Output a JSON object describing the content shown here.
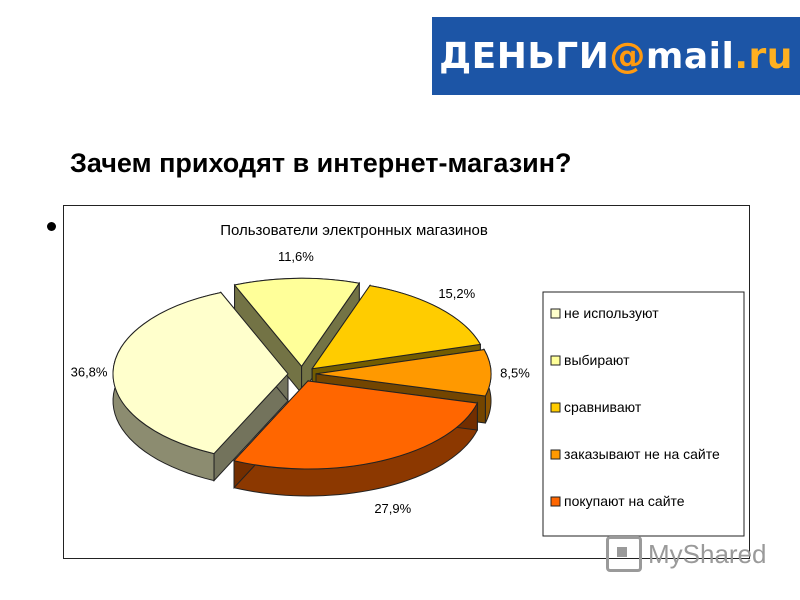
{
  "logo": {
    "part1": "ДЕНЬГИ",
    "part2": "@",
    "part3": "mail",
    "part4": ".ru"
  },
  "slide": {
    "title": "Зачем приходят в интернет-магазин?"
  },
  "chart_data": {
    "type": "pie",
    "title": "Пользователи электронных магазинов",
    "legend_position": "right",
    "three_d": true,
    "slices": [
      {
        "label": "не используют",
        "value": 36.8,
        "value_label": "36,8%",
        "color": "#ffffcc"
      },
      {
        "label": "выбирают",
        "value": 11.6,
        "value_label": "11,6%",
        "color": "#ffff99"
      },
      {
        "label": "сравнивают",
        "value": 15.2,
        "value_label": "15,2%",
        "color": "#ffcc00"
      },
      {
        "label": "заказывают не на сайте",
        "value": 8.5,
        "value_label": "8,5%",
        "color": "#ff9900"
      },
      {
        "label": "покупают на сайте",
        "value": 27.9,
        "value_label": "27,9%",
        "color": "#ff6600"
      }
    ]
  },
  "watermark": {
    "text": "MyShared"
  }
}
